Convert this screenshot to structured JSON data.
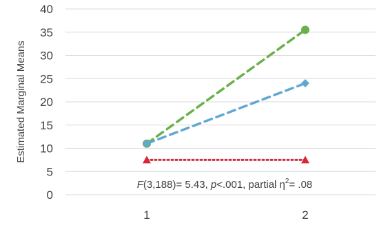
{
  "chart_data": {
    "type": "line",
    "title": "",
    "xlabel": "",
    "ylabel": "Estimated Marginal Means",
    "x": [
      "1",
      "2"
    ],
    "ylim": [
      0,
      40
    ],
    "yticks": [
      0,
      5,
      10,
      15,
      20,
      25,
      30,
      35,
      40
    ],
    "grid": true,
    "legend": "none",
    "series": [
      {
        "values": [
          11,
          35.5
        ],
        "color": "#6ab04c",
        "marker": "circle",
        "line": "dashed"
      },
      {
        "values": [
          11,
          24
        ],
        "color": "#5fa8d3",
        "marker": "diamond",
        "line": "dashed"
      },
      {
        "values": [
          7.5,
          7.5
        ],
        "color": "#d62839",
        "marker": "triangle",
        "line": "dotted"
      }
    ],
    "annotation": {
      "f_label": "F",
      "f_value": "(3,188)= 5.43, ",
      "p_label": "p",
      "p_value": "<.001, partial η",
      "eta_sup": "2",
      "eta_value": "= .08"
    }
  }
}
